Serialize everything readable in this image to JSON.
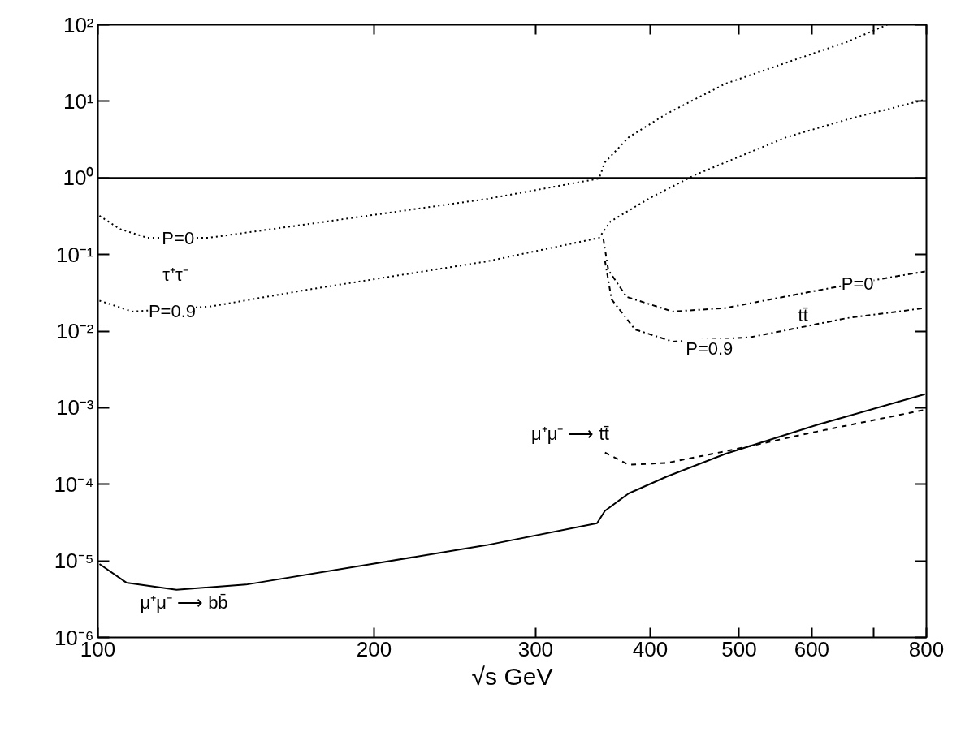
{
  "chart_data": {
    "type": "line",
    "xlabel": "√s GeV",
    "log": "xy",
    "grid": false,
    "marker": "none",
    "xlim": [
      100,
      800
    ],
    "ylim": [
      1e-06,
      100
    ],
    "xticks": [
      100,
      200,
      300,
      400,
      500,
      600,
      {
        "value": 700,
        "label": null
      },
      800
    ],
    "yticks": [
      {
        "value": 1e-06,
        "label": "10⁻⁶"
      },
      {
        "value": 1e-05,
        "label": "10⁻⁵"
      },
      {
        "value": 0.0001,
        "label": "10⁻⁴"
      },
      {
        "value": 0.001,
        "label": "10⁻³"
      },
      {
        "value": 0.01,
        "label": "10⁻²"
      },
      {
        "value": 0.1,
        "label": "10⁻¹"
      },
      {
        "value": 1,
        "label": "10⁰"
      },
      {
        "value": 10,
        "label": "10¹"
      },
      {
        "value": 100,
        "label": "10²"
      }
    ],
    "ref_lines": [
      {
        "axis": "y",
        "value": 1,
        "label": null,
        "color": "#000000",
        "line_style": "solid"
      }
    ],
    "series": [
      {
        "color": "#000000",
        "line_style": "dotted",
        "x": [
          100.4,
          105.7,
          113.3,
          131.9,
          169.7,
          265,
          351.7,
          357,
          379,
          417,
          483,
          563,
          656,
          725
        ],
        "values": [
          0.32,
          0.215,
          0.165,
          0.165,
          0.25,
          0.53,
          0.98,
          1.6,
          3.4,
          6.9,
          17,
          32,
          60,
          100
        ]
      },
      {
        "color": "#000000",
        "line_style": "dotted",
        "x": [
          100.4,
          109,
          132.7,
          170,
          265,
          351.7,
          362,
          400,
          448,
          563,
          656,
          797
        ],
        "values": [
          0.025,
          0.018,
          0.021,
          0.035,
          0.081,
          0.165,
          0.27,
          0.55,
          1.1,
          3.4,
          5.8,
          10.5
        ]
      },
      {
        "color": "#000000",
        "line_style": "dashdot",
        "x": [
          355.6,
          360,
          377,
          423,
          483,
          609,
          707,
          797
        ],
        "values": [
          0.16,
          0.063,
          0.028,
          0.018,
          0.02,
          0.034,
          0.047,
          0.06
        ]
      },
      {
        "color": "#000000",
        "line_style": "dashdot",
        "x": [
          357,
          363,
          385,
          423,
          514,
          656,
          797
        ],
        "values": [
          0.083,
          0.026,
          0.0105,
          0.0073,
          0.0083,
          0.0148,
          0.02
        ]
      },
      {
        "color": "#000000",
        "line_style": "dashed",
        "x": [
          357,
          379,
          417,
          483,
          609,
          797
        ],
        "values": [
          0.00026,
          0.00018,
          0.00019,
          0.00027,
          0.00049,
          0.00094
        ]
      },
      {
        "color": "#000000",
        "line_style": "solid",
        "x": [
          100.4,
          107.4,
          121.8,
          145,
          198.8,
          265,
          350,
          357,
          379,
          417,
          483,
          609,
          797
        ],
        "values": [
          9.1e-06,
          5.2e-06,
          4.2e-06,
          4.9e-06,
          9.1e-06,
          1.6e-05,
          3.1e-05,
          4.5e-05,
          7.6e-05,
          0.000126,
          0.00025,
          0.0006,
          0.0015
        ]
      }
    ],
    "annotations": [
      {
        "text": "P=0",
        "x": 122.3,
        "y": 0.165
      },
      {
        "text": "τ⁺τ⁻",
        "x": 121.5,
        "y": 0.054
      },
      {
        "text": "P=0.9",
        "x": 120.5,
        "y": 0.018
      },
      {
        "text": "P=0",
        "x": 673,
        "y": 0.042
      },
      {
        "text": "tt̄",
        "x": 587,
        "y": 0.016
      },
      "P=0.9",
      "μ⁺μ⁻ ⟶ tt̄",
      "μ⁺μ⁻ ⟶ bb̄"
    ]
  }
}
